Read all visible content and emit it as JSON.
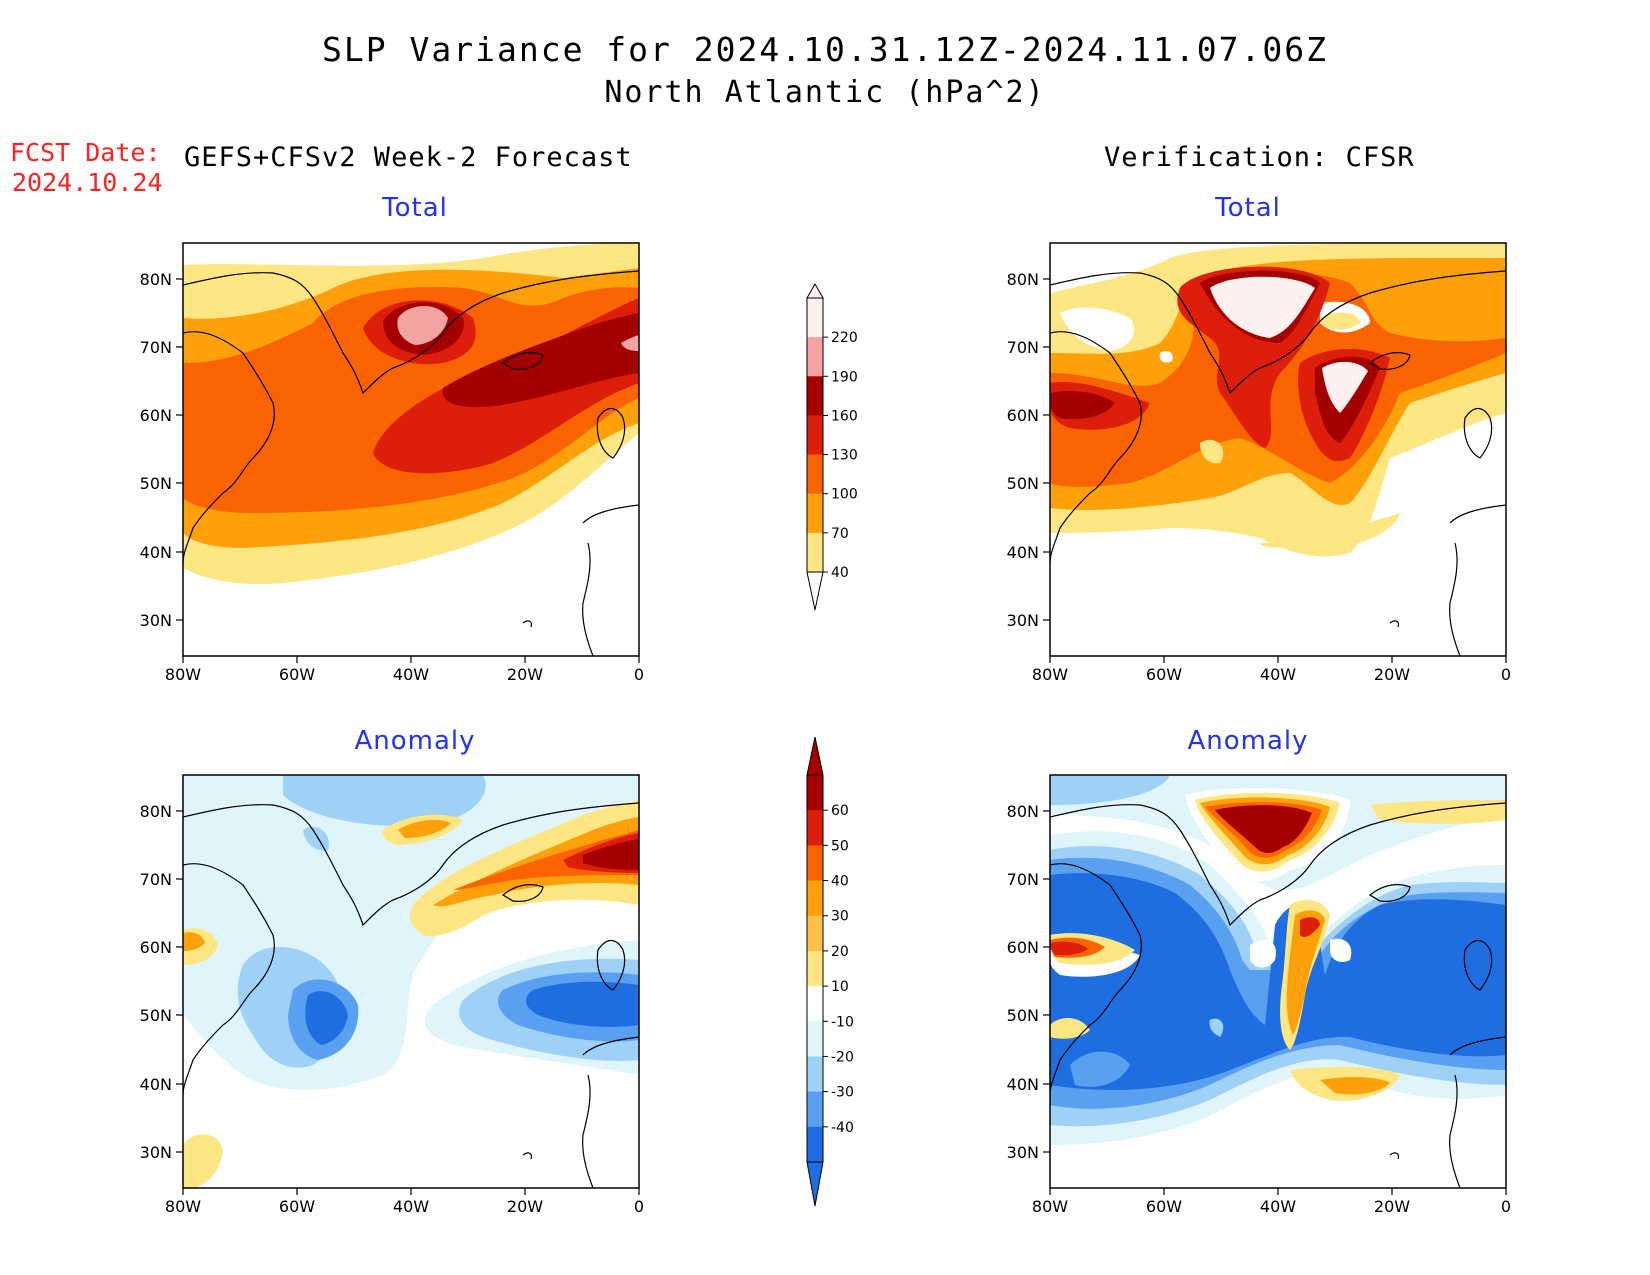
{
  "title_line1": "SLP Variance for 2024.10.31.12Z-2024.11.07.06Z",
  "title_line2": "North Atlantic (hPa^2)",
  "fcst_label": "FCST Date:",
  "fcst_date": "2024.10.24",
  "left_header": "GEFS+CFSv2 Week-2 Forecast",
  "right_header": "Verification: CFSR",
  "panels": [
    {
      "id": "forecast-total",
      "title": "Total"
    },
    {
      "id": "verification-total",
      "title": "Total"
    },
    {
      "id": "forecast-anomaly",
      "title": "Anomaly"
    },
    {
      "id": "verification-anomaly",
      "title": "Anomaly"
    }
  ],
  "lat_ticks": [
    "80N",
    "70N",
    "60N",
    "50N",
    "40N",
    "30N"
  ],
  "lon_ticks": [
    "80W",
    "60W",
    "40W",
    "20W",
    "0"
  ],
  "total_colorbar": {
    "labels": [
      "220",
      "190",
      "160",
      "130",
      "100",
      "70",
      "40"
    ],
    "colors": [
      "#fff0f0",
      "#f4a3a3",
      "#a50000",
      "#dc1e0a",
      "#fa6400",
      "#fda00a",
      "#fee682"
    ]
  },
  "anomaly_colorbar": {
    "labels": [
      "60",
      "50",
      "40",
      "30",
      "20",
      "10",
      "-10",
      "-20",
      "-30",
      "-40"
    ],
    "colors": [
      "#a50000",
      "#dc1e0a",
      "#fa6400",
      "#fda00a",
      "#fbc04a",
      "#fee682",
      "#ffffff",
      "#dff4fb",
      "#9fd0f6",
      "#5aa0f0",
      "#1e6ee1"
    ]
  }
}
